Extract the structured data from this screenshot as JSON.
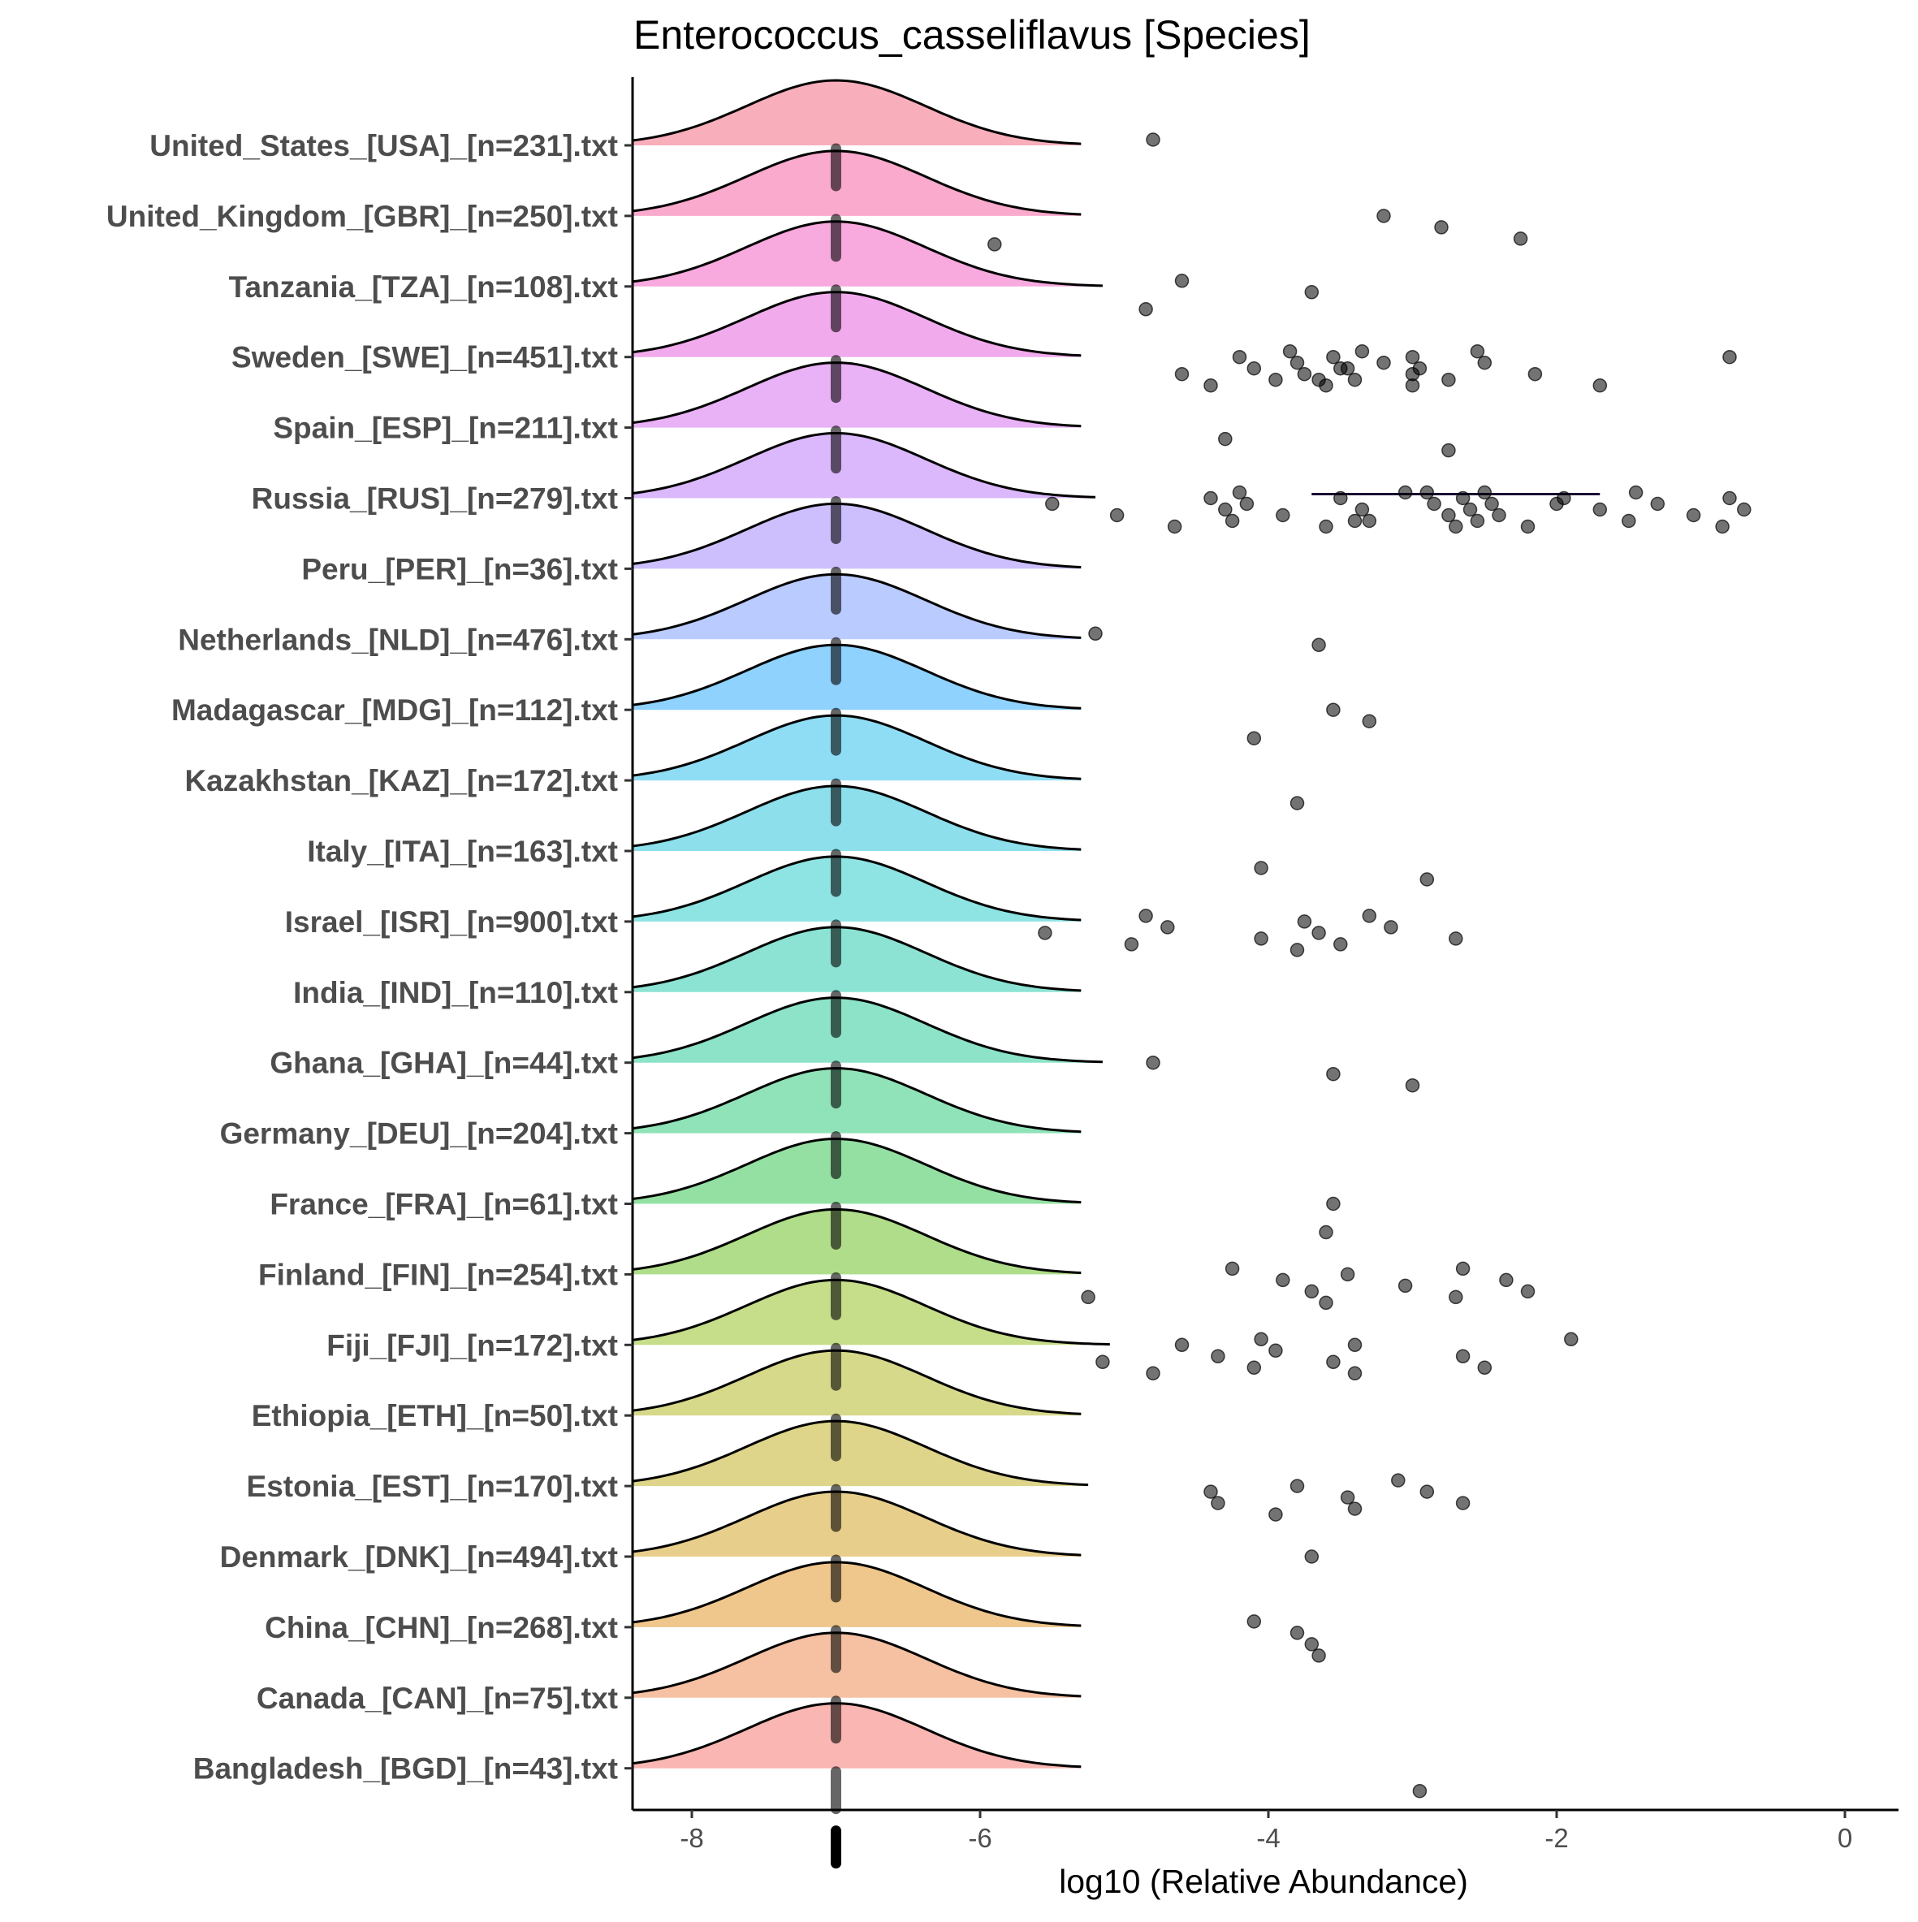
{
  "chart_data": {
    "type": "ridgeline",
    "title": "Enterococcus_casseliflavus [Species]",
    "xlabel": "log10 (Relative Abundance)",
    "ylabel": "",
    "xlim": [
      -8.4,
      0.4
    ],
    "xticks": [
      -8,
      -6,
      -4,
      -2,
      0
    ],
    "xtick_labels": [
      "-8",
      "-6",
      "-4",
      "-2",
      "0"
    ],
    "grid": false,
    "legend": "none",
    "median_marker_x": -7.0,
    "ridges": [
      {
        "label": "United_States_[USA]_[n=231].txt",
        "color": "#f8a5b4",
        "peak": -7.0,
        "right_end": -5.3,
        "points": [
          -4.8
        ]
      },
      {
        "label": "United_Kingdom_[GBR]_[n=250].txt",
        "color": "#f9a1c8",
        "peak": -7.0,
        "right_end": -5.3,
        "points": [
          -5.9,
          -3.2,
          -2.8,
          -2.25
        ]
      },
      {
        "label": "Tanzania_[TZA]_[n=108].txt",
        "color": "#f7a0da",
        "peak": -7.0,
        "right_end": -5.15,
        "points": [
          -4.85,
          -4.6,
          -3.7
        ]
      },
      {
        "label": "Sweden_[SWE]_[n=451].txt",
        "color": "#f0a2eb",
        "peak": -7.0,
        "right_end": -5.3,
        "points": [
          -4.6,
          -4.4,
          -4.2,
          -4.1,
          -3.95,
          -3.85,
          -3.8,
          -3.75,
          -3.6,
          -3.55,
          -3.45,
          -3.4,
          -3.35,
          -3.2,
          -3.0,
          -3.0,
          -3.0,
          -2.95,
          -2.75,
          -2.55,
          -2.5,
          -2.15,
          -1.7,
          -0.8,
          -3.5,
          -3.65
        ]
      },
      {
        "label": "Spain_[ESP]_[n=211].txt",
        "color": "#e7a9f5",
        "peak": -7.0,
        "right_end": -5.3,
        "points": [
          -4.3,
          -2.75
        ]
      },
      {
        "label": "Russia_[RUS]_[n=279].txt",
        "color": "#d7b0fb",
        "peak": -7.0,
        "right_end": -5.2,
        "points": [
          -5.5,
          -5.05,
          -4.65,
          -4.4,
          -4.3,
          -4.25,
          -4.2,
          -4.15,
          -3.9,
          -3.6,
          -3.5,
          -3.35,
          -3.3,
          -3.05,
          -2.85,
          -2.75,
          -2.7,
          -2.65,
          -2.6,
          -2.55,
          -2.5,
          -2.45,
          -2.4,
          -2.2,
          -1.95,
          -1.7,
          -1.5,
          -1.45,
          -1.3,
          -1.05,
          -0.85,
          -0.8,
          -0.7,
          -3.4,
          -2.9,
          -2.0
        ]
      },
      {
        "label": "Peru_[PER]_[n=36].txt",
        "color": "#c8b8fd",
        "peak": -7.0,
        "right_end": -5.3,
        "points": []
      },
      {
        "label": "Netherlands_[NLD]_[n=476].txt",
        "color": "#b3c5ff",
        "peak": -7.0,
        "right_end": -5.3,
        "points": [
          -5.2,
          -3.65
        ]
      },
      {
        "label": "Madagascar_[MDG]_[n=112].txt",
        "color": "#82cdfd",
        "peak": -7.0,
        "right_end": -5.3,
        "points": [
          -4.1,
          -3.55,
          -3.3
        ]
      },
      {
        "label": "Kazakhstan_[KAZ]_[n=172].txt",
        "color": "#83d9f4",
        "peak": -7.0,
        "right_end": -5.3,
        "points": [
          -3.8
        ]
      },
      {
        "label": "Italy_[ITA]_[n=163].txt",
        "color": "#80dce9",
        "peak": -7.0,
        "right_end": -5.3,
        "points": [
          -4.05,
          -2.9
        ]
      },
      {
        "label": "Israel_[ISR]_[n=900].txt",
        "color": "#82e0e0",
        "peak": -7.0,
        "right_end": -5.3,
        "points": [
          -5.55,
          -4.95,
          -4.85,
          -4.7,
          -4.05,
          -3.8,
          -3.75,
          -3.65,
          -3.5,
          -3.3,
          -3.15,
          -2.7
        ]
      },
      {
        "label": "India_[IND]_[n=110].txt",
        "color": "#7fe0cf",
        "peak": -7.0,
        "right_end": -5.3,
        "points": []
      },
      {
        "label": "Ghana_[GHA]_[n=44].txt",
        "color": "#80e0c2",
        "peak": -7.0,
        "right_end": -5.15,
        "points": [
          -4.8,
          -3.55,
          -3.0
        ]
      },
      {
        "label": "Germany_[DEU]_[n=204].txt",
        "color": "#84e0b0",
        "peak": -7.0,
        "right_end": -5.3,
        "points": []
      },
      {
        "label": "France_[FRA]_[n=61].txt",
        "color": "#88dd99",
        "peak": -7.0,
        "right_end": -5.3,
        "points": [
          -3.6,
          -3.55
        ]
      },
      {
        "label": "Finland_[FIN]_[n=254].txt",
        "color": "#a6d97c",
        "peak": -7.0,
        "right_end": -5.3,
        "points": [
          -5.25,
          -4.25,
          -3.9,
          -3.7,
          -3.6,
          -3.45,
          -3.05,
          -2.7,
          -2.65,
          -2.35,
          -2.2
        ]
      },
      {
        "label": "Fiji_[FJI]_[n=172].txt",
        "color": "#c0d97c",
        "peak": -7.0,
        "right_end": -5.1,
        "points": [
          -5.15,
          -4.8,
          -4.6,
          -4.35,
          -4.1,
          -4.05,
          -3.95,
          -3.55,
          -3.4,
          -3.4,
          -2.65,
          -2.5,
          -1.9
        ]
      },
      {
        "label": "Ethiopia_[ETH]_[n=50].txt",
        "color": "#d3d57d",
        "peak": -7.0,
        "right_end": -5.3,
        "points": []
      },
      {
        "label": "Estonia_[EST]_[n=170].txt",
        "color": "#dcd07d",
        "peak": -7.0,
        "right_end": -5.25,
        "points": [
          -4.4,
          -4.35,
          -3.95,
          -3.8,
          -3.45,
          -3.4,
          -3.1,
          -2.9,
          -2.65
        ]
      },
      {
        "label": "Denmark_[DNK]_[n=494].txt",
        "color": "#e6c97e",
        "peak": -7.0,
        "right_end": -5.3,
        "points": [
          -3.7
        ]
      },
      {
        "label": "China_[CHN]_[n=268].txt",
        "color": "#edc07f",
        "peak": -7.0,
        "right_end": -5.3,
        "points": [
          -4.1,
          -3.8,
          -3.7,
          -3.65
        ]
      },
      {
        "label": "Canada_[CAN]_[n=75].txt",
        "color": "#f5b998",
        "peak": -7.0,
        "right_end": -5.3,
        "points": []
      },
      {
        "label": "Bangladesh_[BGD]_[n=43].txt",
        "color": "#f8aeaa",
        "peak": -7.0,
        "right_end": -5.3,
        "points": [
          -2.95
        ]
      }
    ],
    "russia_segment": {
      "x_start": -3.7,
      "x_end": -1.7
    }
  }
}
